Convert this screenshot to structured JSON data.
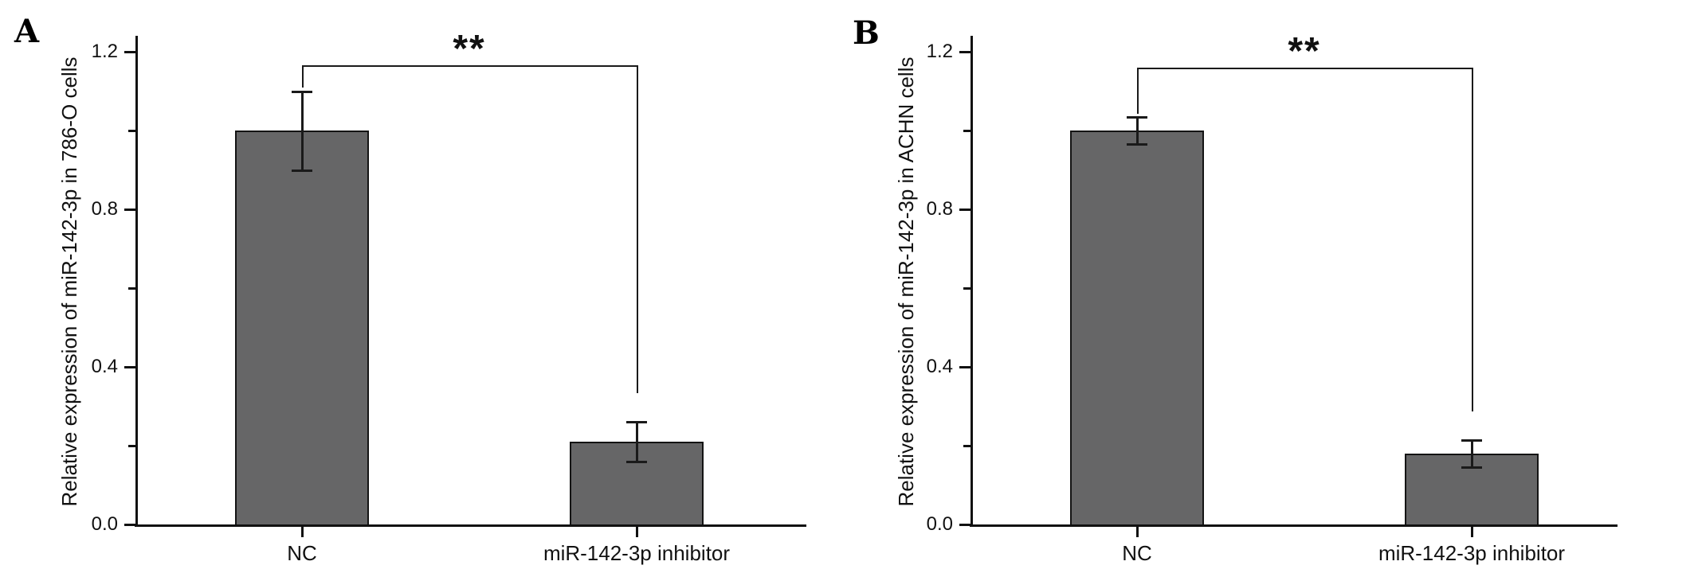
{
  "figure_title": "",
  "background_color": "#ffffff",
  "bar_color": "#666667",
  "line_color": "#1a1a1a",
  "chart_data": [
    {
      "type": "bar",
      "panel_label": "A",
      "title": "",
      "xlabel": "",
      "ylabel": "Relative expression of miR-142-3p in 786-O cells",
      "categories": [
        "NC",
        "miR-142-3p inhibitor"
      ],
      "values": [
        1.0,
        0.21
      ],
      "errors": [
        0.1,
        0.05
      ],
      "yticks": [
        0.0,
        0.4,
        0.8,
        1.2
      ],
      "minor_yticks": [
        0.2,
        0.6,
        1.0
      ],
      "ylim": [
        0,
        1.25
      ],
      "grid": false,
      "legend": false,
      "bar_color": "#666667",
      "significance": {
        "label": "**",
        "pair": [
          0,
          1
        ],
        "bracket_y": 1.165
      }
    },
    {
      "type": "bar",
      "panel_label": "B",
      "title": "",
      "xlabel": "",
      "ylabel": "Relative expression of miR-142-3p in ACHN cells",
      "categories": [
        "NC",
        "miR-142-3p inhibitor"
      ],
      "values": [
        1.0,
        0.18
      ],
      "errors": [
        0.035,
        0.035
      ],
      "yticks": [
        0.0,
        0.4,
        0.8,
        1.2
      ],
      "minor_yticks": [
        0.2,
        0.6,
        1.0
      ],
      "ylim": [
        0,
        1.25
      ],
      "grid": false,
      "legend": false,
      "bar_color": "#666667",
      "significance": {
        "label": "**",
        "pair": [
          0,
          1
        ],
        "bracket_y": 1.16
      }
    }
  ]
}
